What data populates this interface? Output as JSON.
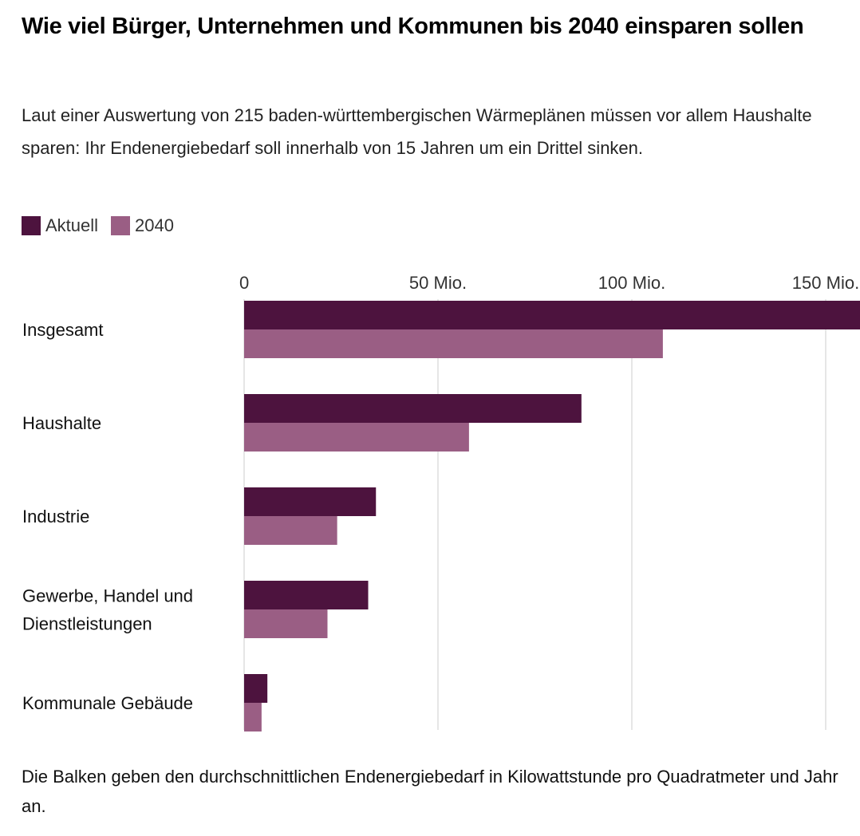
{
  "header": {
    "title": "Wie viel Bürger, Unternehmen und Kommunen bis 2040 einsparen sollen",
    "subtitle": "Laut einer Auswertung von 215 baden-württembergischen Wärmeplänen müssen vor allem Haushalte sparen: Ihr Endenergiebedarf soll innerhalb von 15 Jahren um ein Drittel sinken."
  },
  "legend": [
    {
      "label": "Aktuell",
      "color": "#4d133e"
    },
    {
      "label": "2040",
      "color": "#9a5e84"
    }
  ],
  "footer": {
    "note": "Die Balken geben den durchschnittlichen Endenergiebedarf in Kilowattstunde pro Quadratmeter und Jahr an."
  },
  "chart_data": {
    "type": "bar",
    "orientation": "horizontal",
    "title": "Wie viel Bürger, Unternehmen und Kommunen bis 2040 einsparen sollen",
    "xlabel": "",
    "ylabel": "",
    "categories": [
      [
        "Insgesamt"
      ],
      [
        "Haushalte"
      ],
      [
        "Industrie"
      ],
      [
        "Gewerbe, Handel und",
        "Dienstleistungen"
      ],
      [
        "Kommunale Gebäude"
      ]
    ],
    "series": [
      {
        "name": "Aktuell",
        "color": "#4d133e",
        "values": [
          159,
          87,
          34,
          32,
          6
        ]
      },
      {
        "name": "2040",
        "color": "#9a5e84",
        "values": [
          108,
          58,
          24,
          21.5,
          4.5
        ]
      }
    ],
    "xlim": [
      0,
      159
    ],
    "ticks": [
      {
        "value": 0,
        "label": "0"
      },
      {
        "value": 50,
        "label": "50 Mio."
      },
      {
        "value": 100,
        "label": "100 Mio."
      },
      {
        "value": 150,
        "label": "150 Mio."
      }
    ],
    "grid": true,
    "legend_position": "top-left"
  }
}
